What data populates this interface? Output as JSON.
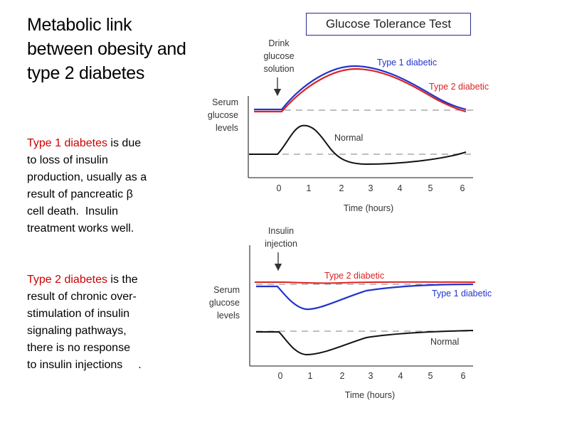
{
  "title_lines": [
    "Metabolic link",
    "between obesity and",
    "type 2 diabetes"
  ],
  "type1": {
    "term": "Type 1 diabetes",
    "line1_rest": " is due",
    "line2": "to loss of insulin",
    "line3": "production, usually as a",
    "line4": "result of pancreatic β",
    "line5a": "cell death.",
    "line5b": "Insulin",
    "line6": "treatment works well."
  },
  "type2": {
    "term": "Type 2 diabetes",
    "line1_rest": " is the",
    "line2": "result of chronic over-",
    "line3": "stimulation of insulin",
    "line4": "signaling pathways,",
    "line5": "there is no response",
    "line6": "to insulin injections",
    "trailing": "."
  },
  "test_title": "Glucose Tolerance Test",
  "colors": {
    "type1": "#2233cc",
    "type2": "#dd2222",
    "normal": "#111111",
    "highlight": "#cc0000"
  },
  "top_chart": {
    "event_label": [
      "Drink",
      "glucose",
      "solution"
    ],
    "ylabel": [
      "Serum",
      "glucose",
      "levels"
    ],
    "xlabel": "Time (hours)",
    "ticks": [
      "0",
      "1",
      "2",
      "3",
      "4",
      "5",
      "6"
    ],
    "series_labels": {
      "type1": "Type 1 diabetic",
      "type2": "Type 2 diabetic",
      "normal": "Normal"
    }
  },
  "bottom_chart": {
    "event_label": [
      "Insulin",
      "injection"
    ],
    "ylabel": [
      "Serum",
      "glucose",
      "levels"
    ],
    "xlabel": "Time (hours)",
    "ticks": [
      "0",
      "1",
      "2",
      "3",
      "4",
      "5",
      "6"
    ],
    "series_labels": {
      "type1": "Type 1 diabetic",
      "type2": "Type 2 diabetic",
      "normal": "Normal"
    }
  }
}
